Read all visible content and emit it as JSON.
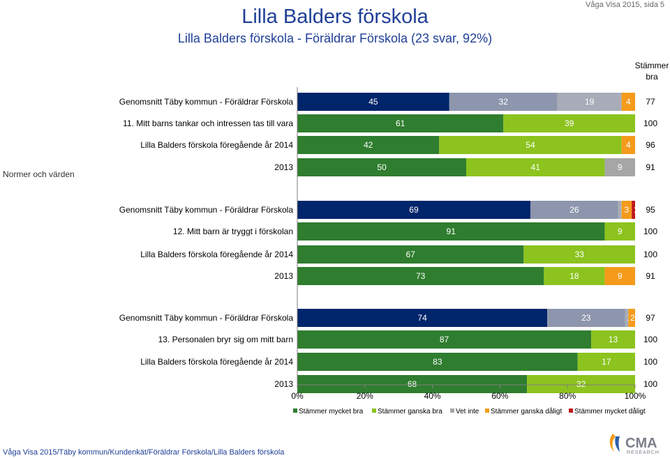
{
  "header": {
    "title": "Lilla Balders förskola",
    "subtitle": "Lilla Balders förskola - Föräldrar Förskola (23 svar, 92%)",
    "page_ref": "Våga Visa 2015, sida 5"
  },
  "footer": {
    "path": "Våga Visa 2015/Täby kommun/Kundenkät/Föräldrar Förskola/Lilla Balders förskola"
  },
  "logo": {
    "text": "CMA",
    "subtext": "RESEARCH"
  },
  "colors": {
    "stammer_mycket_bra": "#00256b",
    "stammer_ganska_bra_blue": "#8d96ad",
    "vet_inte_blue": "#a8acb8",
    "green_dark": "#2f7d2f",
    "green_light": "#8cc31e",
    "grey": "#a6a6a6",
    "orange": "#f49b1b",
    "red": "#c0161a"
  },
  "chart_data": {
    "type": "bar",
    "orientation": "horizontal-stacked-100",
    "section_label": "Normer och värden",
    "right_column_title": "Stämmer bra",
    "xticks": [
      "0%",
      "20%",
      "40%",
      "60%",
      "80%",
      "100%"
    ],
    "xlim": [
      0,
      100
    ],
    "legend_position": "bottom",
    "legend": [
      {
        "name": "Stämmer mycket bra",
        "color": "#2f7d2f"
      },
      {
        "name": "Stämmer ganska bra",
        "color": "#8cc31e"
      },
      {
        "name": "Vet inte",
        "color": "#a6a6a6"
      },
      {
        "name": "Stämmer ganska dåligt",
        "color": "#f49b1b"
      },
      {
        "name": "Stämmer mycket dåligt",
        "color": "#c0161a"
      }
    ],
    "rows": [
      {
        "label": "Genomsnitt Täby kommun - Föräldrar Förskola",
        "palette": "blue",
        "values": [
          45,
          32,
          19,
          4,
          0
        ],
        "value_labels": [
          "45",
          "32",
          "19",
          "4",
          "0"
        ],
        "stammer_bra": "77"
      },
      {
        "label": "11. Mitt barns tankar och intressen tas till vara",
        "palette": "green",
        "values": [
          61,
          39,
          0,
          0,
          0
        ],
        "value_labels": [
          "61",
          "39",
          "0",
          "",
          ""
        ],
        "stammer_bra": "100"
      },
      {
        "label": "Lilla Balders förskola föregående år 2014",
        "palette": "green",
        "values": [
          42,
          54,
          0,
          4,
          0
        ],
        "value_labels": [
          "42",
          "54",
          "0",
          "4",
          "0"
        ],
        "stammer_bra": "96"
      },
      {
        "label": "2013",
        "palette": "green",
        "values": [
          50,
          41,
          9,
          0,
          0
        ],
        "value_labels": [
          "50",
          "41",
          "9",
          "0",
          ""
        ],
        "stammer_bra": "91"
      },
      {
        "label": "Genomsnitt Täby kommun - Föräldrar Förskola",
        "palette": "blue",
        "values": [
          69,
          26,
          1,
          3,
          1
        ],
        "value_labels": [
          "69",
          "26",
          "1",
          "3",
          "1"
        ],
        "stammer_bra": "95"
      },
      {
        "label": "12. Mitt barn är tryggt i förskolan",
        "palette": "green",
        "values": [
          91,
          9,
          0,
          0,
          0
        ],
        "value_labels": [
          "91",
          "9",
          "0",
          "",
          ""
        ],
        "stammer_bra": "100"
      },
      {
        "label": "Lilla Balders förskola föregående år 2014",
        "palette": "green",
        "values": [
          67,
          33,
          0,
          0,
          0
        ],
        "value_labels": [
          "67",
          "33",
          "0",
          "",
          ""
        ],
        "stammer_bra": "100"
      },
      {
        "label": "2013",
        "palette": "green",
        "values": [
          73,
          18,
          0,
          9,
          0
        ],
        "value_labels": [
          "73",
          "18",
          "0",
          "9",
          "0"
        ],
        "stammer_bra": "91"
      },
      {
        "label": "Genomsnitt Täby kommun - Föräldrar Förskola",
        "palette": "blue",
        "values": [
          74,
          23,
          1,
          2,
          0
        ],
        "value_labels": [
          "74",
          "23",
          "1",
          "2",
          "0"
        ],
        "stammer_bra": "97"
      },
      {
        "label": "13. Personalen bryr sig om mitt barn",
        "palette": "green",
        "values": [
          87,
          13,
          0,
          0,
          0
        ],
        "value_labels": [
          "87",
          "13",
          "0",
          "",
          ""
        ],
        "stammer_bra": "100"
      },
      {
        "label": "Lilla Balders förskola föregående år 2014",
        "palette": "green",
        "values": [
          83,
          17,
          0,
          0,
          0
        ],
        "value_labels": [
          "83",
          "17",
          "0",
          "",
          ""
        ],
        "stammer_bra": "100"
      },
      {
        "label": "2013",
        "palette": "green",
        "values": [
          68,
          32,
          0,
          0,
          0
        ],
        "value_labels": [
          "68",
          "32",
          "0",
          "",
          ""
        ],
        "stammer_bra": "100"
      }
    ]
  }
}
